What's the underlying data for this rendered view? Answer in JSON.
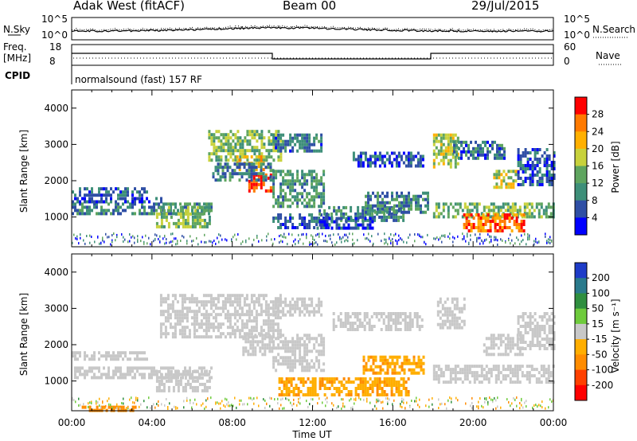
{
  "header": {
    "title": "Adak West (fitACF)",
    "beam": "Beam 00",
    "date": "29/Jul/2015"
  },
  "top_panels": {
    "noise_left_label": "N.Sky",
    "noise_right_label": "N.Search",
    "noise_left_ticks": [
      "10^5",
      "10^0"
    ],
    "noise_right_ticks": [
      "10^5",
      "10^0"
    ],
    "freq_label_1": "Freq.",
    "freq_label_2": "[MHz]",
    "freq_ticks": [
      "18",
      "8"
    ],
    "nave_ticks": [
      "60",
      "0"
    ],
    "nave_label": "Nave",
    "cpid_label": "CPID",
    "cpid_text": "normalsound (fast) 157 RF"
  },
  "colors": {
    "power": [
      "#0000ff",
      "#2f4fa5",
      "#3e8f79",
      "#5fa55f",
      "#c8d23c",
      "#ffb000",
      "#ff7a00",
      "#ff0000"
    ],
    "velocity": [
      "#1e3cc8",
      "#2a7a8c",
      "#2f8f3f",
      "#6ecb3c",
      "#c8c8c8",
      "#ffae00",
      "#ff8c00",
      "#ff4000",
      "#ff0000"
    ],
    "ground_scatter": "#c8c8c8"
  },
  "chart_data": [
    {
      "type": "heatmap",
      "ylabel": "Slant Range [km]",
      "yticks": [
        "1000",
        "2000",
        "3000",
        "4000"
      ],
      "ylim": [
        180,
        4500
      ],
      "xlim": [
        0,
        24
      ],
      "colorbar": {
        "label": "Power [dB]",
        "ticks": [
          "4",
          "8",
          "12",
          "16",
          "20",
          "24",
          "28"
        ],
        "range": [
          0,
          32
        ]
      },
      "regions": [
        {
          "t0": 0.0,
          "t1": 3.7,
          "r0": 1560,
          "r1": 1820,
          "v": 7
        },
        {
          "t0": 0.0,
          "t1": 7.0,
          "r0": 1100,
          "r1": 1400,
          "v": 10
        },
        {
          "t0": 4.2,
          "t1": 6.9,
          "r0": 700,
          "r1": 1300,
          "v": 15
        },
        {
          "t0": 0.0,
          "t1": 4.5,
          "r0": 1400,
          "r1": 1550,
          "v": 6
        },
        {
          "t0": 6.8,
          "t1": 10.4,
          "r0": 2600,
          "r1": 3400,
          "v": 15
        },
        {
          "t0": 8.2,
          "t1": 9.6,
          "r0": 2300,
          "r1": 2700,
          "v": 22
        },
        {
          "t0": 8.8,
          "t1": 10.0,
          "r0": 1700,
          "r1": 2200,
          "v": 29
        },
        {
          "t0": 7.0,
          "t1": 10.0,
          "r0": 2000,
          "r1": 2500,
          "v": 9
        },
        {
          "t0": 10.0,
          "t1": 12.4,
          "r0": 2800,
          "r1": 3300,
          "v": 8
        },
        {
          "t0": 10.0,
          "t1": 12.6,
          "r0": 1300,
          "r1": 2300,
          "v": 11
        },
        {
          "t0": 10.0,
          "t1": 12.8,
          "r0": 700,
          "r1": 1100,
          "v": 6
        },
        {
          "t0": 12.3,
          "t1": 16.5,
          "r0": 900,
          "r1": 1300,
          "v": 9
        },
        {
          "t0": 14.6,
          "t1": 17.8,
          "r0": 1100,
          "r1": 1700,
          "v": 10
        },
        {
          "t0": 12.2,
          "t1": 15.0,
          "r0": 700,
          "r1": 1000,
          "v": 5
        },
        {
          "t0": 14.0,
          "t1": 17.5,
          "r0": 2400,
          "r1": 2800,
          "v": 5
        },
        {
          "t0": 18.0,
          "t1": 19.2,
          "r0": 2400,
          "r1": 3300,
          "v": 17
        },
        {
          "t0": 18.0,
          "t1": 24.0,
          "r0": 1000,
          "r1": 1400,
          "v": 14
        },
        {
          "t0": 19.5,
          "t1": 22.5,
          "r0": 600,
          "r1": 1100,
          "v": 26
        },
        {
          "t0": 21.0,
          "t1": 22.3,
          "r0": 1800,
          "r1": 2300,
          "v": 18
        },
        {
          "t0": 22.2,
          "t1": 24.0,
          "r0": 1900,
          "r1": 2900,
          "v": 6
        },
        {
          "t0": 19.0,
          "t1": 21.5,
          "r0": 2600,
          "r1": 3100,
          "v": 8
        }
      ]
    },
    {
      "type": "heatmap",
      "ylabel": "Slant Range [km]",
      "yticks": [
        "1000",
        "2000",
        "3000",
        "4000"
      ],
      "ylim": [
        180,
        4500
      ],
      "xlim": [
        0,
        24
      ],
      "xlabel": "Time UT",
      "xticks": [
        "00:00",
        "04:00",
        "08:00",
        "12:00",
        "16:00",
        "20:00",
        "00:00"
      ],
      "colorbar": {
        "label": "Velocity [m s⁻¹]",
        "ticks": [
          "200",
          "100",
          "50",
          "15",
          "-15",
          "-50",
          "-100",
          "-200"
        ],
        "range": [
          -250,
          250
        ]
      },
      "regions": [
        {
          "t0": 0.0,
          "t1": 3.7,
          "r0": 1560,
          "r1": 1820,
          "v": 0
        },
        {
          "t0": 0.0,
          "t1": 7.0,
          "r0": 1050,
          "r1": 1400,
          "v": 0
        },
        {
          "t0": 4.2,
          "t1": 6.9,
          "r0": 700,
          "r1": 1300,
          "v": 0
        },
        {
          "t0": 4.4,
          "t1": 10.4,
          "r0": 2200,
          "r1": 3400,
          "v": 0
        },
        {
          "t0": 8.5,
          "t1": 10.0,
          "r0": 1700,
          "r1": 2300,
          "v": 0
        },
        {
          "t0": 10.0,
          "t1": 12.6,
          "r0": 1300,
          "r1": 2300,
          "v": 0
        },
        {
          "t0": 10.0,
          "t1": 12.4,
          "r0": 2800,
          "r1": 3300,
          "v": 0
        },
        {
          "t0": 10.3,
          "t1": 16.8,
          "r0": 600,
          "r1": 1100,
          "v": -45
        },
        {
          "t0": 14.5,
          "t1": 17.5,
          "r0": 1200,
          "r1": 1700,
          "v": -45
        },
        {
          "t0": 13.0,
          "t1": 17.5,
          "r0": 2400,
          "r1": 2900,
          "v": 0
        },
        {
          "t0": 18.0,
          "t1": 24.0,
          "r0": 1000,
          "r1": 1450,
          "v": 0
        },
        {
          "t0": 18.2,
          "t1": 19.6,
          "r0": 2500,
          "r1": 3300,
          "v": 0
        },
        {
          "t0": 20.5,
          "t1": 22.5,
          "r0": 1700,
          "r1": 2300,
          "v": 0
        },
        {
          "t0": 22.2,
          "t1": 24.0,
          "r0": 1900,
          "r1": 2900,
          "v": 0
        },
        {
          "t0": 0.5,
          "t1": 3.2,
          "r0": 180,
          "r1": 320,
          "v": -60
        }
      ]
    }
  ]
}
